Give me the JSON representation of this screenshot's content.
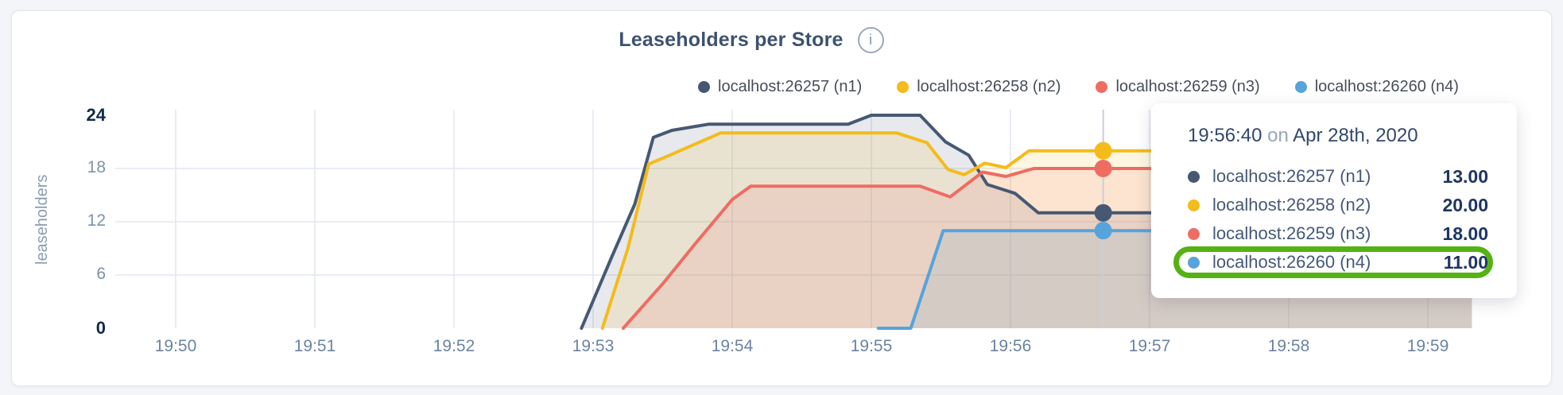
{
  "header": {
    "title": "Leaseholders per Store",
    "info_glyph": "i"
  },
  "palette": {
    "background": "#f3f5f8",
    "card": "#ffffff",
    "grid": "#e4e7f0",
    "hover_line": "#c9ced8",
    "highlight_green": "#55b214"
  },
  "chart_data": {
    "type": "area",
    "title": "Leaseholders per Store",
    "ylabel": "leaseholders",
    "xlabel": "",
    "ylim": [
      0,
      24
    ],
    "grid": true,
    "legend_position": "top",
    "x_ticks": [
      "19:50",
      "19:51",
      "19:52",
      "19:53",
      "19:54",
      "19:55",
      "19:56",
      "19:57",
      "19:58",
      "19:59"
    ],
    "y_ticks": [
      {
        "label": "0",
        "value": 0,
        "emphasis": true
      },
      {
        "label": "6",
        "value": 6,
        "emphasis": false
      },
      {
        "label": "12",
        "value": 12,
        "emphasis": false
      },
      {
        "label": "18",
        "value": 18,
        "emphasis": false
      },
      {
        "label": "24",
        "value": 24,
        "emphasis": true
      }
    ],
    "series": [
      {
        "name": "localhost:26257 (n1)",
        "color": "#475872",
        "points": [
          [
            "19:52:55",
            0
          ],
          [
            "19:53:08",
            8
          ],
          [
            "19:53:18",
            14
          ],
          [
            "19:53:26",
            21.5
          ],
          [
            "19:53:34",
            22.3
          ],
          [
            "19:53:50",
            23
          ],
          [
            "19:54:50",
            23
          ],
          [
            "19:55:00",
            24
          ],
          [
            "19:55:21",
            24
          ],
          [
            "19:55:32",
            21
          ],
          [
            "19:55:42",
            19.5
          ],
          [
            "19:55:50",
            16.2
          ],
          [
            "19:56:02",
            15.2
          ],
          [
            "19:56:12",
            13
          ],
          [
            "19:59:19",
            13
          ]
        ]
      },
      {
        "name": "localhost:26258 (n2)",
        "color": "#f4bb1a",
        "points": [
          [
            "19:53:04",
            0
          ],
          [
            "19:53:15",
            9
          ],
          [
            "19:53:24",
            18.5
          ],
          [
            "19:53:33",
            19.5
          ],
          [
            "19:53:55",
            22
          ],
          [
            "19:55:11",
            22
          ],
          [
            "19:55:24",
            20.9
          ],
          [
            "19:55:33",
            17.9
          ],
          [
            "19:55:40",
            17.3
          ],
          [
            "19:55:49",
            18.6
          ],
          [
            "19:55:58",
            18.1
          ],
          [
            "19:56:08",
            20
          ],
          [
            "19:59:19",
            20
          ]
        ]
      },
      {
        "name": "localhost:26259 (n3)",
        "color": "#ef6c63",
        "points": [
          [
            "19:53:13",
            0
          ],
          [
            "19:53:30",
            5
          ],
          [
            "19:53:44",
            9.5
          ],
          [
            "19:54:00",
            14.5
          ],
          [
            "19:54:08",
            16
          ],
          [
            "19:55:21",
            16
          ],
          [
            "19:55:34",
            14.8
          ],
          [
            "19:55:48",
            17.6
          ],
          [
            "19:55:58",
            17.1
          ],
          [
            "19:56:10",
            18
          ],
          [
            "19:59:19",
            18
          ]
        ]
      },
      {
        "name": "localhost:26260 (n4)",
        "color": "#57a3dc",
        "points": [
          [
            "19:55:03",
            0
          ],
          [
            "19:55:17",
            0
          ],
          [
            "19:55:31",
            11
          ],
          [
            "19:59:19",
            11
          ]
        ]
      }
    ],
    "hover": {
      "time": "19:56:40",
      "values": [
        13,
        20,
        18,
        11
      ]
    }
  },
  "tooltip": {
    "time": "19:56:40",
    "on_word": "on",
    "date": "Apr 28th, 2020",
    "rows": [
      {
        "label": "localhost:26257 (n1)",
        "value": "13.00",
        "color": "#475872",
        "highlighted": false
      },
      {
        "label": "localhost:26258 (n2)",
        "value": "20.00",
        "color": "#f4bb1a",
        "highlighted": false
      },
      {
        "label": "localhost:26259 (n3)",
        "value": "18.00",
        "color": "#ef6c63",
        "highlighted": false
      },
      {
        "label": "localhost:26260 (n4)",
        "value": "11.00",
        "color": "#57a3dc",
        "highlighted": true
      }
    ],
    "highlight_color": "#55b214"
  }
}
